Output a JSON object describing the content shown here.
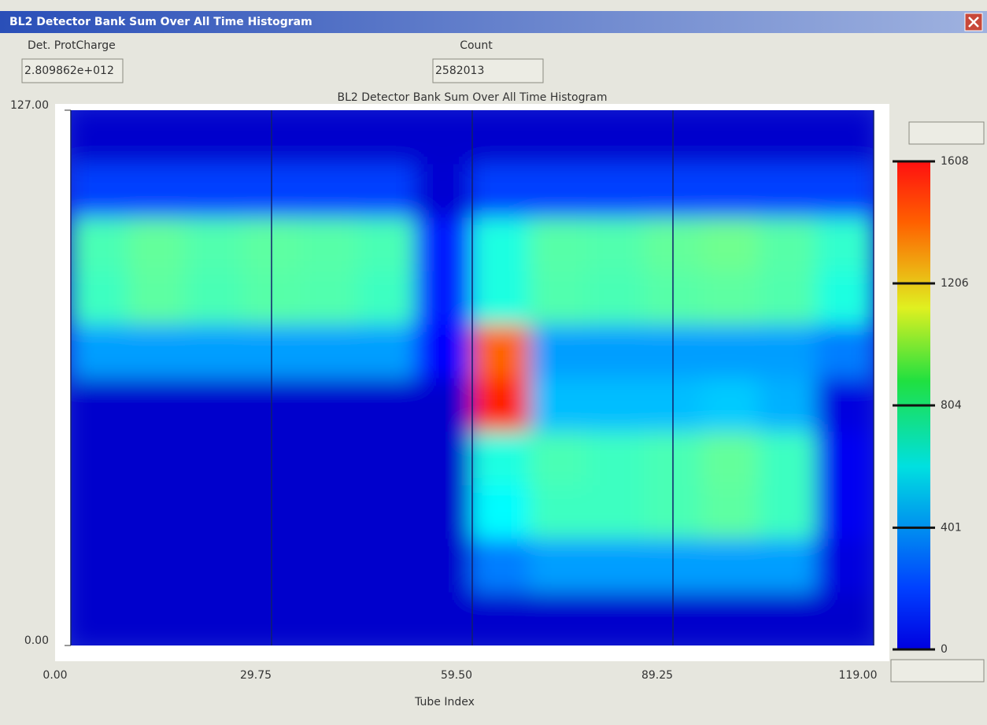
{
  "window": {
    "title": "BL2 Detector Bank Sum Over All Time Histogram"
  },
  "fields": [
    {
      "label": "Det. ProtCharge",
      "value": "2.809862e+012"
    },
    {
      "label": "Count",
      "value": "2582013"
    }
  ],
  "chart_data": {
    "type": "heatmap",
    "title": "BL2 Detector Bank Sum Over All Time Histogram",
    "x_label": "Tube Index",
    "xlim": [
      0,
      119
    ],
    "xticks": [
      {
        "value": 0,
        "label": "0.00"
      },
      {
        "value": 29.75,
        "label": "29.75"
      },
      {
        "value": 59.5,
        "label": "59.50"
      },
      {
        "value": 89.25,
        "label": "89.25"
      },
      {
        "value": 119,
        "label": "119.00"
      }
    ],
    "ylim": [
      0,
      127
    ],
    "yticks": [
      {
        "value": 0,
        "label": "0.00"
      },
      {
        "value": 127,
        "label": "127.00"
      }
    ],
    "xbins": [
      0,
      8.5,
      17,
      25.5,
      34,
      42.5,
      51,
      59.5,
      68,
      76.5,
      85,
      93.5,
      102,
      110.5,
      119
    ],
    "ybins": [
      0,
      12.7,
      25.4,
      38.1,
      50.8,
      63.5,
      76.2,
      88.9,
      101.6,
      114.3,
      127
    ],
    "z": [
      [
        120,
        120,
        120,
        120,
        120,
        120,
        120,
        120,
        120,
        120,
        120,
        120,
        120,
        120
      ],
      [
        120,
        120,
        120,
        120,
        120,
        120,
        120,
        400,
        450,
        450,
        450,
        450,
        450,
        150
      ],
      [
        120,
        120,
        120,
        120,
        120,
        120,
        120,
        600,
        700,
        700,
        720,
        750,
        700,
        180
      ],
      [
        120,
        120,
        120,
        120,
        120,
        120,
        120,
        650,
        720,
        700,
        720,
        760,
        700,
        180
      ],
      [
        120,
        120,
        120,
        120,
        120,
        120,
        120,
        1350,
        500,
        500,
        500,
        520,
        480,
        150
      ],
      [
        450,
        450,
        450,
        450,
        450,
        450,
        200,
        1250,
        450,
        450,
        450,
        450,
        450,
        400
      ],
      [
        700,
        750,
        720,
        740,
        730,
        700,
        250,
        650,
        730,
        720,
        740,
        750,
        730,
        650
      ],
      [
        720,
        760,
        730,
        750,
        740,
        720,
        250,
        650,
        740,
        730,
        760,
        780,
        740,
        680
      ],
      [
        300,
        300,
        300,
        300,
        300,
        300,
        130,
        300,
        300,
        300,
        300,
        300,
        300,
        300
      ],
      [
        120,
        120,
        120,
        120,
        120,
        120,
        120,
        120,
        120,
        120,
        120,
        120,
        120,
        120
      ]
    ],
    "zlim": [
      0,
      1608
    ],
    "colorbar_ticks": [
      0,
      401,
      804,
      1206,
      1608
    ],
    "colormap": "jet",
    "grid": true
  }
}
